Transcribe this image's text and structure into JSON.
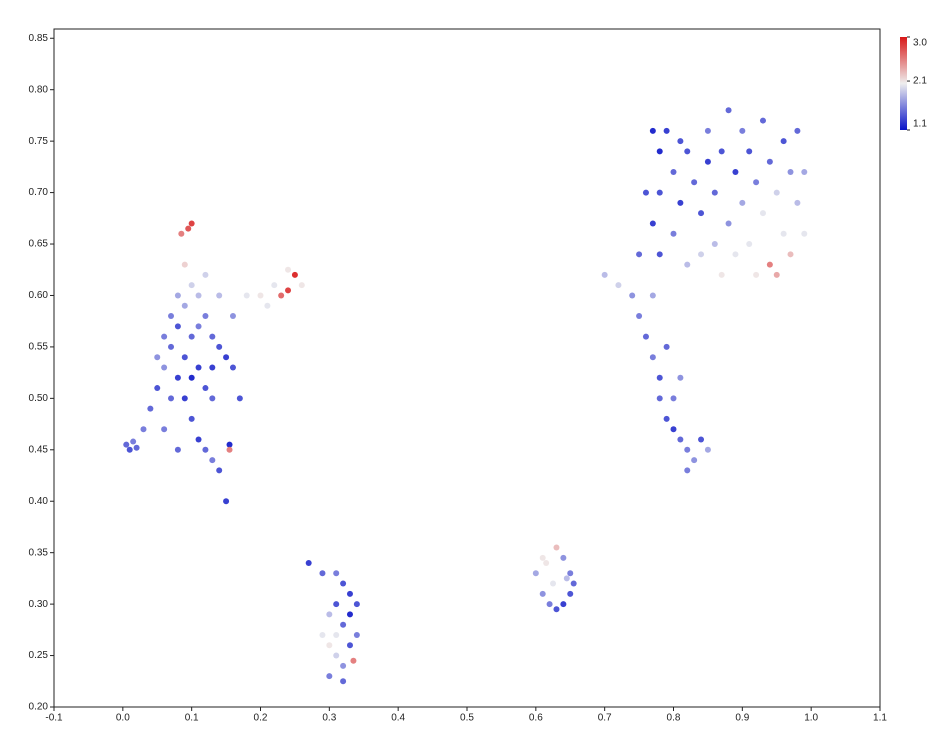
{
  "chart_data": {
    "type": "scatter",
    "x": [
      0.005,
      0.01,
      0.015,
      0.02,
      0.03,
      0.04,
      0.05,
      0.06,
      0.07,
      0.08,
      0.09,
      0.1,
      0.09,
      0.095,
      0.085,
      0.1,
      0.11,
      0.12,
      0.13,
      0.14,
      0.15,
      0.16,
      0.07,
      0.08,
      0.09,
      0.1,
      0.11,
      0.12,
      0.13,
      0.1,
      0.11,
      0.12,
      0.13,
      0.14,
      0.15,
      0.155,
      0.155,
      0.06,
      0.05,
      0.08,
      0.07,
      0.12,
      0.14,
      0.16,
      0.18,
      0.2,
      0.22,
      0.23,
      0.24,
      0.25,
      0.26,
      0.21,
      0.24,
      0.17,
      0.09,
      0.1,
      0.06,
      0.08,
      0.13,
      0.11,
      0.27,
      0.29,
      0.31,
      0.32,
      0.33,
      0.34,
      0.33,
      0.32,
      0.31,
      0.3,
      0.31,
      0.32,
      0.3,
      0.32,
      0.335,
      0.34,
      0.33,
      0.3,
      0.29,
      0.31,
      0.61,
      0.615,
      0.63,
      0.64,
      0.65,
      0.655,
      0.65,
      0.64,
      0.63,
      0.62,
      0.61,
      0.6,
      0.625,
      0.645,
      0.7,
      0.72,
      0.74,
      0.75,
      0.76,
      0.77,
      0.78,
      0.78,
      0.79,
      0.8,
      0.81,
      0.82,
      0.83,
      0.82,
      0.84,
      0.85,
      0.8,
      0.81,
      0.79,
      0.77,
      0.78,
      0.77,
      0.78,
      0.78,
      0.79,
      0.8,
      0.81,
      0.8,
      0.82,
      0.82,
      0.83,
      0.84,
      0.85,
      0.85,
      0.86,
      0.86,
      0.87,
      0.88,
      0.88,
      0.89,
      0.9,
      0.9,
      0.91,
      0.91,
      0.92,
      0.92,
      0.93,
      0.93,
      0.94,
      0.94,
      0.95,
      0.95,
      0.96,
      0.96,
      0.97,
      0.97,
      0.98,
      0.98,
      0.99,
      0.99,
      0.75,
      0.76,
      0.87,
      0.89,
      0.84,
      0.81,
      0.77
    ],
    "y": [
      0.455,
      0.45,
      0.458,
      0.452,
      0.47,
      0.49,
      0.51,
      0.53,
      0.55,
      0.57,
      0.59,
      0.61,
      0.63,
      0.665,
      0.66,
      0.67,
      0.6,
      0.58,
      0.56,
      0.55,
      0.54,
      0.53,
      0.5,
      0.52,
      0.54,
      0.56,
      0.53,
      0.51,
      0.5,
      0.48,
      0.46,
      0.45,
      0.44,
      0.43,
      0.4,
      0.455,
      0.45,
      0.56,
      0.54,
      0.6,
      0.58,
      0.62,
      0.6,
      0.58,
      0.6,
      0.6,
      0.61,
      0.6,
      0.605,
      0.62,
      0.61,
      0.59,
      0.625,
      0.5,
      0.5,
      0.52,
      0.47,
      0.45,
      0.53,
      0.57,
      0.34,
      0.33,
      0.33,
      0.32,
      0.31,
      0.3,
      0.29,
      0.28,
      0.27,
      0.26,
      0.25,
      0.24,
      0.23,
      0.225,
      0.245,
      0.27,
      0.26,
      0.29,
      0.27,
      0.3,
      0.345,
      0.34,
      0.355,
      0.345,
      0.33,
      0.32,
      0.31,
      0.3,
      0.295,
      0.3,
      0.31,
      0.33,
      0.32,
      0.325,
      0.62,
      0.61,
      0.6,
      0.58,
      0.56,
      0.54,
      0.52,
      0.5,
      0.48,
      0.47,
      0.46,
      0.45,
      0.44,
      0.43,
      0.46,
      0.45,
      0.5,
      0.52,
      0.55,
      0.6,
      0.64,
      0.67,
      0.7,
      0.74,
      0.76,
      0.72,
      0.69,
      0.66,
      0.63,
      0.74,
      0.71,
      0.68,
      0.73,
      0.76,
      0.65,
      0.7,
      0.74,
      0.78,
      0.67,
      0.72,
      0.76,
      0.69,
      0.65,
      0.74,
      0.71,
      0.62,
      0.77,
      0.68,
      0.63,
      0.73,
      0.62,
      0.7,
      0.75,
      0.66,
      0.72,
      0.64,
      0.76,
      0.69,
      0.72,
      0.66,
      0.64,
      0.7,
      0.62,
      0.64,
      0.64,
      0.75,
      0.76
    ],
    "values": [
      1.4,
      1.3,
      1.5,
      1.4,
      1.5,
      1.4,
      1.3,
      1.6,
      1.4,
      1.3,
      1.7,
      1.9,
      2.2,
      2.8,
      2.6,
      2.9,
      1.8,
      1.5,
      1.4,
      1.3,
      1.2,
      1.3,
      1.4,
      1.2,
      1.3,
      1.4,
      1.2,
      1.3,
      1.4,
      1.3,
      1.2,
      1.4,
      1.5,
      1.3,
      1.2,
      1.1,
      2.6,
      1.5,
      1.6,
      1.7,
      1.5,
      1.9,
      1.8,
      1.6,
      2,
      2.1,
      2,
      2.7,
      2.9,
      3,
      2.1,
      2,
      2.1,
      1.3,
      1.2,
      1.1,
      1.5,
      1.4,
      1.2,
      1.5,
      1.2,
      1.4,
      1.5,
      1.3,
      1.2,
      1.3,
      1.1,
      1.4,
      2,
      2.1,
      1.9,
      1.6,
      1.5,
      1.4,
      2.6,
      1.5,
      1.3,
      1.8,
      2,
      1.3,
      2.1,
      2.1,
      2.3,
      1.6,
      1.5,
      1.4,
      1.3,
      1.2,
      1.3,
      1.5,
      1.6,
      1.7,
      2,
      1.8,
      1.8,
      1.9,
      1.6,
      1.5,
      1.4,
      1.5,
      1.3,
      1.4,
      1.3,
      1.2,
      1.4,
      1.5,
      1.6,
      1.5,
      1.3,
      1.7,
      1.5,
      1.6,
      1.4,
      1.7,
      1.3,
      1.2,
      1.3,
      1.1,
      1.2,
      1.4,
      1.2,
      1.5,
      1.8,
      1.3,
      1.4,
      1.3,
      1.2,
      1.5,
      1.8,
      1.4,
      1.3,
      1.4,
      1.6,
      1.2,
      1.5,
      1.7,
      2,
      1.3,
      1.5,
      2.1,
      1.4,
      2,
      2.6,
      1.4,
      2.4,
      1.9,
      1.3,
      2,
      1.6,
      2.3,
      1.4,
      1.8,
      1.7,
      2,
      1.4,
      1.3,
      2.1,
      2,
      1.9,
      1.3,
      1.1
    ],
    "xlim": [
      -0.1,
      1.1
    ],
    "xticks": [
      -0.1,
      {
        "value": 0,
        "label": "0.0"
      },
      0.1,
      0.2,
      0.3,
      0.4,
      0.5,
      0.6,
      0.7,
      0.8,
      0.9,
      {
        "value": 1,
        "label": "1.0"
      },
      1.1
    ],
    "ylim": [
      0.2,
      0.859
    ],
    "yticks": [
      {
        "value": 0.2,
        "label": "0.20"
      },
      0.25,
      {
        "value": 0.3,
        "label": "0.30"
      },
      0.35,
      {
        "value": 0.4,
        "label": "0.40"
      },
      0.45,
      {
        "value": 0.5,
        "label": "0.50"
      },
      0.55,
      {
        "value": 0.6,
        "label": "0.60"
      },
      0.65,
      {
        "value": 0.7,
        "label": "0.70"
      },
      0.75,
      {
        "value": 0.8,
        "label": "0.80"
      },
      0.85
    ],
    "clim": [
      1.1,
      3
    ],
    "cticks": [
      1.1,
      2.1,
      {
        "value": 3,
        "label": "3.0"
      }
    ],
    "colormap": [
      "#0a14c8",
      "#eeeeee",
      "#d81818"
    ]
  }
}
